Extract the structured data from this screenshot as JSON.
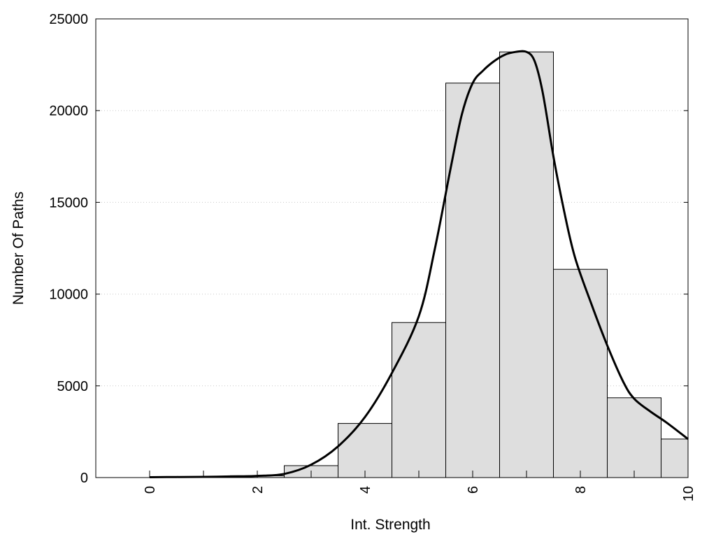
{
  "chart_data": {
    "type": "bar",
    "xlabel": "Int. Strength",
    "ylabel": "Number Of Paths",
    "xlim": [
      -1,
      10
    ],
    "ylim": [
      0,
      25000
    ],
    "x_ticks": [
      0,
      2,
      4,
      6,
      8,
      10
    ],
    "y_ticks": [
      0,
      5000,
      10000,
      15000,
      20000,
      25000
    ],
    "grid": "horizontal-dotted",
    "bin_width": 1,
    "bins": [
      {
        "x": 0,
        "value": 0
      },
      {
        "x": 1,
        "value": 0
      },
      {
        "x": 2,
        "value": 100
      },
      {
        "x": 3,
        "value": 650
      },
      {
        "x": 4,
        "value": 2950
      },
      {
        "x": 5,
        "value": 8450
      },
      {
        "x": 6,
        "value": 21500
      },
      {
        "x": 7,
        "value": 23200
      },
      {
        "x": 8,
        "value": 11350
      },
      {
        "x": 9,
        "value": 4350
      },
      {
        "x": 10,
        "value": 2100
      }
    ],
    "curve": {
      "x": [
        0,
        0.5,
        1,
        1.5,
        2,
        2.5,
        3,
        3.5,
        4,
        4.5,
        5,
        5.3,
        5.6,
        5.8,
        6,
        6.2,
        6.4,
        6.6,
        6.8,
        7,
        7.15,
        7.3,
        7.5,
        7.7,
        7.9,
        8.2,
        8.5,
        8.8,
        9,
        9.3,
        9.6,
        10
      ],
      "y": [
        20,
        30,
        40,
        60,
        90,
        200,
        700,
        1700,
        3300,
        5700,
        8800,
        12500,
        17000,
        19800,
        21500,
        22200,
        22700,
        23050,
        23200,
        23200,
        22700,
        21000,
        17500,
        14500,
        12000,
        9500,
        7200,
        5200,
        4300,
        3600,
        3000,
        2100
      ]
    },
    "colors": {
      "bar_fill": "#dedede",
      "bar_stroke": "#000000",
      "curve": "#000000",
      "grid": "#c8c8c8"
    }
  }
}
